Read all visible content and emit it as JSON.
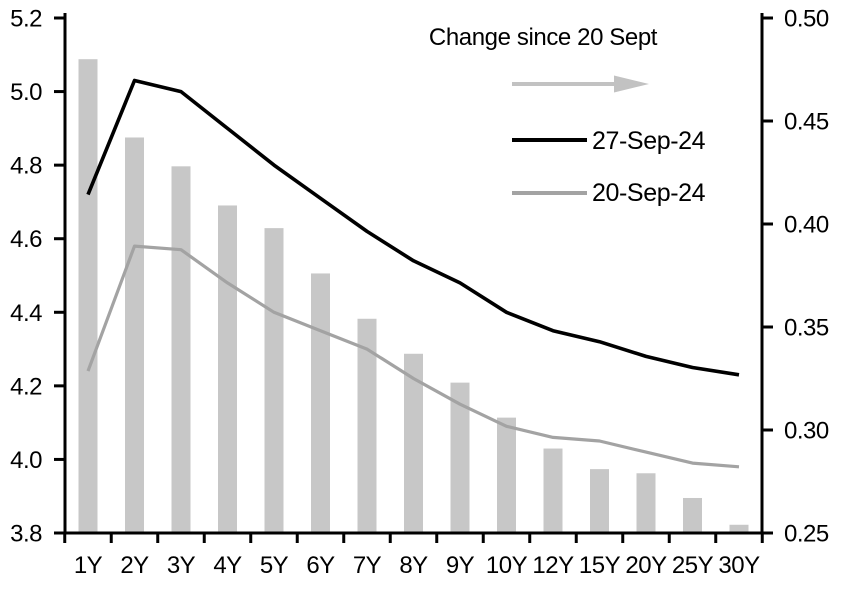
{
  "chart_data": {
    "type": "combo-bar-line",
    "title": "",
    "categories": [
      "1Y",
      "2Y",
      "3Y",
      "4Y",
      "5Y",
      "6Y",
      "7Y",
      "8Y",
      "9Y",
      "10Y",
      "12Y",
      "15Y",
      "20Y",
      "25Y",
      "30Y"
    ],
    "series": [
      {
        "name": "Change since 20 Sept",
        "kind": "bar",
        "axis": "right",
        "color": "#c7c7c7",
        "values": [
          0.48,
          0.442,
          0.428,
          0.409,
          0.398,
          0.376,
          0.354,
          0.337,
          0.323,
          0.306,
          0.291,
          0.281,
          0.279,
          0.267,
          0.254
        ]
      },
      {
        "name": "27-Sep-24",
        "kind": "line",
        "axis": "left",
        "color": "#000000",
        "values": [
          4.72,
          5.03,
          5.0,
          4.9,
          4.8,
          4.71,
          4.62,
          4.54,
          4.48,
          4.4,
          4.35,
          4.32,
          4.28,
          4.25,
          4.23
        ]
      },
      {
        "name": "20-Sep-24",
        "kind": "line",
        "axis": "left",
        "color": "#a3a3a3",
        "values": [
          4.24,
          4.58,
          4.57,
          4.48,
          4.4,
          4.35,
          4.3,
          4.22,
          4.15,
          4.09,
          4.06,
          4.05,
          4.02,
          3.99,
          3.98
        ]
      }
    ],
    "left_axis": {
      "min": 3.8,
      "max": 5.2,
      "step": 0.2,
      "tick_labels": [
        "5.2",
        "5.0",
        "4.8",
        "4.6",
        "4.4",
        "4.2",
        "4.0",
        "3.8"
      ]
    },
    "right_axis": {
      "min": 0.25,
      "max": 0.5,
      "step": 0.05,
      "tick_labels": [
        "0.50",
        "0.45",
        "0.40",
        "0.35",
        "0.30",
        "0.25"
      ]
    },
    "grid": false,
    "legend_position": "inside-top-right"
  },
  "legend": {
    "change_label": "Change since 20 Sept",
    "series_27sep": "27-Sep-24",
    "series_20sep": "20-Sep-24"
  },
  "colors": {
    "bar": "#c7c7c7",
    "line_27sep": "#000000",
    "line_20sep": "#a3a3a3",
    "arrow": "#c2c2c2",
    "axis": "#000000"
  }
}
